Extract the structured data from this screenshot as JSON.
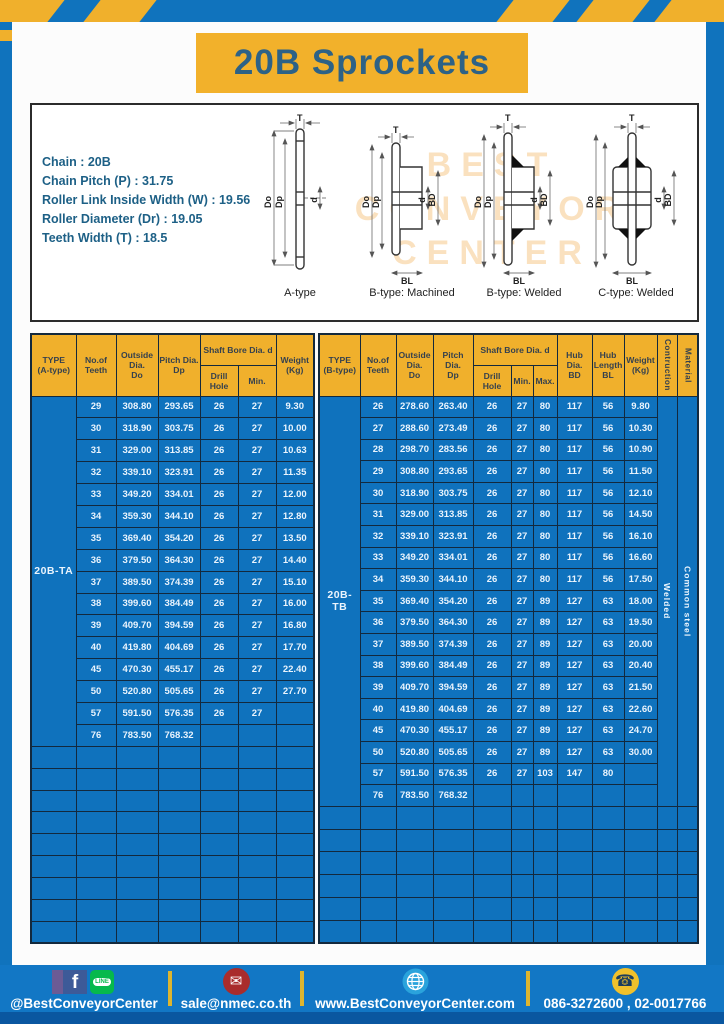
{
  "banner": {
    "title": "20B Sprockets"
  },
  "specs": {
    "lines": [
      "Chain  : 20B",
      "Chain Pitch (P)  :  31.75",
      "Roller Link Inside Width (W)  :  19.56",
      "Roller Diameter (Dr)  : 19.05",
      "Teeth Width (T)  :  18.5"
    ]
  },
  "diagram": {
    "captions": [
      "A-type",
      "B-type: Machined",
      "B-type: Welded",
      "C-type: Welded"
    ],
    "dims": {
      "t": "T",
      "outside": "Do",
      "pitch": "Dp",
      "bore": "d",
      "hub_dia": "BD",
      "hub_len": "BL"
    },
    "watermark": [
      "BEST",
      "CONVEYOR",
      "CENTER"
    ]
  },
  "tables": {
    "left": {
      "type_label": "20B-TA",
      "headers": {
        "type": [
          "TYPE",
          "(A-type)"
        ],
        "teeth": [
          "No.of",
          "Teeth"
        ],
        "outside": [
          "Outside",
          "Dia.",
          "Do"
        ],
        "pitch": [
          "Pitch Dia.",
          "Dp"
        ],
        "shaft_bore": "Shaft Bore Dia. d",
        "drill_hole": "Drill Hole",
        "min": "Min.",
        "weight": [
          "Weight",
          "(Kg)"
        ]
      },
      "rows": [
        [
          "29",
          "308.80",
          "293.65",
          "26",
          "27",
          "9.30"
        ],
        [
          "30",
          "318.90",
          "303.75",
          "26",
          "27",
          "10.00"
        ],
        [
          "31",
          "329.00",
          "313.85",
          "26",
          "27",
          "10.63"
        ],
        [
          "32",
          "339.10",
          "323.91",
          "26",
          "27",
          "11.35"
        ],
        [
          "33",
          "349.20",
          "334.01",
          "26",
          "27",
          "12.00"
        ],
        [
          "34",
          "359.30",
          "344.10",
          "26",
          "27",
          "12.80"
        ],
        [
          "35",
          "369.40",
          "354.20",
          "26",
          "27",
          "13.50"
        ],
        [
          "36",
          "379.50",
          "364.30",
          "26",
          "27",
          "14.40"
        ],
        [
          "37",
          "389.50",
          "374.39",
          "26",
          "27",
          "15.10"
        ],
        [
          "38",
          "399.60",
          "384.49",
          "26",
          "27",
          "16.00"
        ],
        [
          "39",
          "409.70",
          "394.59",
          "26",
          "27",
          "16.80"
        ],
        [
          "40",
          "419.80",
          "404.69",
          "26",
          "27",
          "17.70"
        ],
        [
          "45",
          "470.30",
          "455.17",
          "26",
          "27",
          "22.40"
        ],
        [
          "50",
          "520.80",
          "505.65",
          "26",
          "27",
          "27.70"
        ],
        [
          "57",
          "591.50",
          "576.35",
          "26",
          "27",
          ""
        ],
        [
          "76",
          "783.50",
          "768.32",
          "",
          "",
          ""
        ]
      ],
      "empty_rows": 9
    },
    "right": {
      "type_label": "20B-TB",
      "headers": {
        "type": [
          "TYPE",
          "(B-type)"
        ],
        "teeth": [
          "No.of",
          "Teeth"
        ],
        "outside": [
          "Outside",
          "Dia.",
          "Do"
        ],
        "pitch": [
          "Pitch Dia.",
          "Dp"
        ],
        "shaft_bore": "Shaft Bore Dia. d",
        "drill_hole": "Drill Hole",
        "min": "Min.",
        "max": "Max.",
        "hub_dia": [
          "Hub Dia.",
          "BD"
        ],
        "hub_length": [
          "Hub",
          "Length",
          "BL"
        ],
        "weight": [
          "Weight",
          "(Kg)"
        ],
        "construction": "Contruction",
        "material": "Material"
      },
      "rows": [
        [
          "26",
          "278.60",
          "263.40",
          "26",
          "27",
          "80",
          "117",
          "56",
          "9.80"
        ],
        [
          "27",
          "288.60",
          "273.49",
          "26",
          "27",
          "80",
          "117",
          "56",
          "10.30"
        ],
        [
          "28",
          "298.70",
          "283.56",
          "26",
          "27",
          "80",
          "117",
          "56",
          "10.90"
        ],
        [
          "29",
          "308.80",
          "293.65",
          "26",
          "27",
          "80",
          "117",
          "56",
          "11.50"
        ],
        [
          "30",
          "318.90",
          "303.75",
          "26",
          "27",
          "80",
          "117",
          "56",
          "12.10"
        ],
        [
          "31",
          "329.00",
          "313.85",
          "26",
          "27",
          "80",
          "117",
          "56",
          "14.50"
        ],
        [
          "32",
          "339.10",
          "323.91",
          "26",
          "27",
          "80",
          "117",
          "56",
          "16.10"
        ],
        [
          "33",
          "349.20",
          "334.01",
          "26",
          "27",
          "80",
          "117",
          "56",
          "16.60"
        ],
        [
          "34",
          "359.30",
          "344.10",
          "26",
          "27",
          "80",
          "117",
          "56",
          "17.50"
        ],
        [
          "35",
          "369.40",
          "354.20",
          "26",
          "27",
          "89",
          "127",
          "63",
          "18.00"
        ],
        [
          "36",
          "379.50",
          "364.30",
          "26",
          "27",
          "89",
          "127",
          "63",
          "19.50"
        ],
        [
          "37",
          "389.50",
          "374.39",
          "26",
          "27",
          "89",
          "127",
          "63",
          "20.00"
        ],
        [
          "38",
          "399.60",
          "384.49",
          "26",
          "27",
          "89",
          "127",
          "63",
          "20.40"
        ],
        [
          "39",
          "409.70",
          "394.59",
          "26",
          "27",
          "89",
          "127",
          "63",
          "21.50"
        ],
        [
          "40",
          "419.80",
          "404.69",
          "26",
          "27",
          "89",
          "127",
          "63",
          "22.60"
        ],
        [
          "45",
          "470.30",
          "455.17",
          "26",
          "27",
          "89",
          "127",
          "63",
          "24.70"
        ],
        [
          "50",
          "520.80",
          "505.65",
          "26",
          "27",
          "89",
          "127",
          "63",
          "30.00"
        ],
        [
          "57",
          "591.50",
          "576.35",
          "26",
          "27",
          "103",
          "147",
          "80",
          ""
        ],
        [
          "76",
          "783.50",
          "768.32",
          "",
          "",
          "",
          "",
          "",
          ""
        ]
      ],
      "construction_value": "Welded",
      "material_value": "Common  steel",
      "empty_rows": 6
    }
  },
  "footer": {
    "facebook_glyph": "f",
    "line_glyph": "LINE",
    "mail_glyph": "✉",
    "phone_glyph": "☎",
    "social_handle": "@BestConveyorCenter",
    "email": "sale@nmec.co.th",
    "website": "www.BestConveyorCenter.com",
    "phone_numbers": "086-3272600 , 02-0017766"
  },
  "colors": {
    "frame_blue": "#1073bd",
    "cell_blue": "#0f72bd",
    "header_yellow": "#f0b02c",
    "title_text": "#2d6286",
    "footer_blue": "#1277c5",
    "bottom_bar": "#0a57a0",
    "border_dark": "#13293d"
  }
}
